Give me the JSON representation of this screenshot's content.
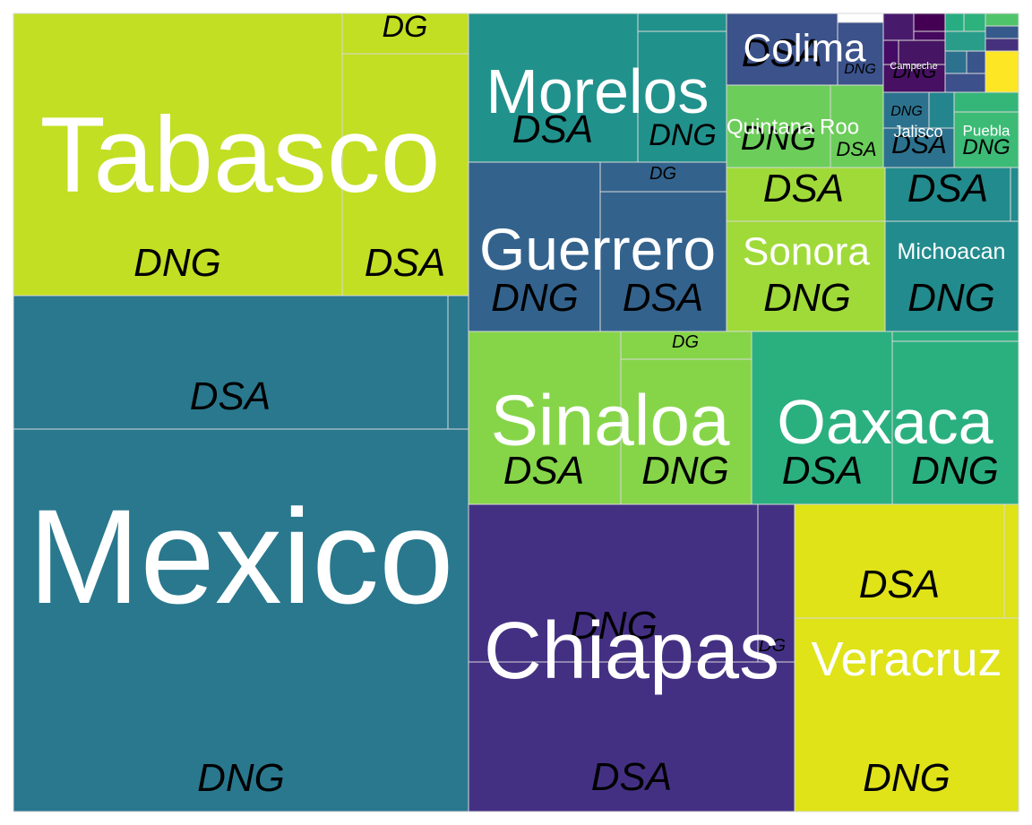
{
  "chart_data": {
    "type": "treemap",
    "palette": "viridis",
    "groups": [
      {
        "name": "Mexico",
        "color": "#29788e",
        "children": [
          {
            "name": "DNG",
            "value": 180000
          },
          {
            "name": "DSA",
            "value": 57000
          },
          {
            "name": "",
            "value": 900
          }
        ]
      },
      {
        "name": "Tabasco",
        "color": "#c2df23",
        "children": [
          {
            "name": "DNG",
            "value": 59000
          },
          {
            "name": "DSA",
            "value": 21000
          },
          {
            "name": "DG",
            "value": 7000
          }
        ]
      },
      {
        "name": "Chiapas",
        "color": "#443083",
        "children": [
          {
            "name": "DSA",
            "value": 62000
          },
          {
            "name": "DNG",
            "value": 47000
          },
          {
            "name": "DG",
            "value": 6500
          }
        ]
      },
      {
        "name": "Veracruz",
        "color": "#dfe318",
        "children": [
          {
            "name": "DNG",
            "value": 38000
          },
          {
            "name": "DSA",
            "value": 22000
          },
          {
            "name": "",
            "value": 800
          }
        ]
      },
      {
        "name": "Sinaloa",
        "color": "#86d549",
        "children": [
          {
            "name": "DSA",
            "value": 21000
          },
          {
            "name": "DNG",
            "value": 19000
          },
          {
            "name": "DG",
            "value": 2000
          }
        ]
      },
      {
        "name": "Oaxaca",
        "color": "#2ab07f",
        "children": [
          {
            "name": "DSA",
            "value": 19500
          },
          {
            "name": "DNG",
            "value": 17500
          },
          {
            "name": "",
            "value": 600
          }
        ]
      },
      {
        "name": "Guerrero",
        "color": "#33638d",
        "children": [
          {
            "name": "DNG",
            "value": 16000
          },
          {
            "name": "DSA",
            "value": 15000
          },
          {
            "name": "DG",
            "value": 2400
          }
        ]
      },
      {
        "name": "Sonora",
        "color": "#a0da39",
        "children": [
          {
            "name": "DNG",
            "value": 18500
          },
          {
            "name": "DSA",
            "value": 6500
          }
        ]
      },
      {
        "name": "Morelos",
        "color": "#21918c",
        "children": [
          {
            "name": "DSA",
            "value": 19000
          },
          {
            "name": "DNG",
            "value": 11000
          },
          {
            "name": "",
            "value": 1100
          }
        ]
      },
      {
        "name": "Michoacan",
        "color": "#228b8d",
        "children": [
          {
            "name": "DNG",
            "value": 13000
          },
          {
            "name": "DSA",
            "value": 5800
          },
          {
            "name": "",
            "value": 500
          }
        ]
      },
      {
        "name": "Colima",
        "color": "#3b528b",
        "children": [
          {
            "name": "DSA",
            "value": 11000
          },
          {
            "name": "DNG",
            "value": 5500
          }
        ]
      },
      {
        "name": "Quintana Roo",
        "color": "#6ccd5a",
        "children": [
          {
            "name": "DNG",
            "value": 11000
          },
          {
            "name": "DSA",
            "value": 5500
          }
        ]
      },
      {
        "name": "Jalisco",
        "color": "#2c728e",
        "children": [
          {
            "name": "DSA",
            "value": 3200
          },
          {
            "name": "DNG",
            "value": 2000
          }
        ]
      },
      {
        "name": "Puebla",
        "color": "#3bbb75",
        "children": [
          {
            "name": "DNG",
            "value": 3700
          },
          {
            "name": "",
            "value": 900
          }
        ]
      },
      {
        "name": "Campeche",
        "color": "#471063",
        "children": [
          {
            "name": "DNG",
            "value": 2600
          }
        ]
      }
    ]
  }
}
